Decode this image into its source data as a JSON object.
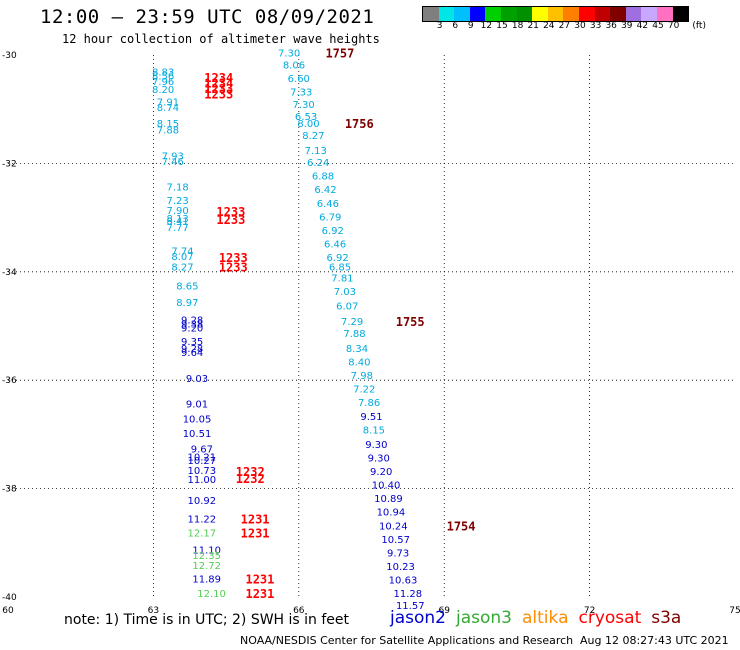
{
  "title": "12:00 – 23:59 UTC 08/09/2021",
  "subtitle": "12 hour collection of altimeter wave heights",
  "colorbar": {
    "colors": [
      "#7f7f7f",
      "#00e5e5",
      "#00bfff",
      "#0000ff",
      "#00d000",
      "#00a000",
      "#009000",
      "#ffff00",
      "#ffc000",
      "#ff8000",
      "#ff0000",
      "#c00000",
      "#800000",
      "#9f6fdf",
      "#c8a8ff",
      "#ff70c0",
      "#000000"
    ],
    "labels": [
      "3",
      "6",
      "9",
      "12",
      "15",
      "18",
      "21",
      "24",
      "27",
      "30",
      "33",
      "36",
      "39",
      "42",
      "45",
      "70"
    ],
    "unit": "(ft)"
  },
  "map": {
    "lon_range": [
      60,
      75
    ],
    "lat_range": [
      -30,
      -40
    ],
    "lon_ticks": [
      "60",
      "63",
      "66",
      "69",
      "72",
      "75"
    ],
    "lat_ticks": [
      "-30",
      "-32",
      "-34",
      "-36",
      "-38",
      "-40"
    ]
  },
  "missions": [
    {
      "name": "jason2",
      "color": "#0000cc"
    },
    {
      "name": "jason3",
      "color": "#33aa33"
    },
    {
      "name": "altika",
      "color": "#ff8c00"
    },
    {
      "name": "cryosat",
      "color": "#ff0000"
    },
    {
      "name": "s3a",
      "color": "#800000"
    }
  ],
  "note": "note: 1) Time is in UTC; 2) SWH is in feet",
  "credit": "NOAA/NESDIS Center for Satellite Applications and Research",
  "timestamp": "Aug 12 08:27:43 UTC 2021",
  "chart_data": {
    "type": "scatter",
    "title": "12:00 – 23:59 UTC 08/09/2021",
    "subtitle": "12 hour collection of altimeter wave heights",
    "xlabel": "",
    "ylabel": "",
    "xlim": [
      60,
      75
    ],
    "ylim": [
      -40,
      -30
    ],
    "track_a": [
      {
        "lon": 63.2,
        "lat": -30.38,
        "v": "8.83",
        "c": "#00aadd"
      },
      {
        "lon": 63.2,
        "lat": -30.45,
        "v": "8.56",
        "c": "#00aadd"
      },
      {
        "lon": 63.2,
        "lat": -30.55,
        "v": "7.96",
        "c": "#00aadd"
      },
      {
        "lon": 63.2,
        "lat": -30.7,
        "v": "8.20",
        "c": "#00aadd"
      },
      {
        "lon": 63.3,
        "lat": -30.93,
        "v": "7.91",
        "c": "#00aadd"
      },
      {
        "lon": 63.3,
        "lat": -31.03,
        "v": "8.74",
        "c": "#00aadd"
      },
      {
        "lon": 63.3,
        "lat": -31.33,
        "v": "8.15",
        "c": "#00aadd"
      },
      {
        "lon": 63.3,
        "lat": -31.45,
        "v": "7.88",
        "c": "#00aadd"
      },
      {
        "lon": 63.4,
        "lat": -31.93,
        "v": "7.93",
        "c": "#00aadd"
      },
      {
        "lon": 63.4,
        "lat": -32.03,
        "v": "7.46",
        "c": "#00aadd"
      },
      {
        "lon": 63.5,
        "lat": -32.5,
        "v": "7.18",
        "c": "#00aadd"
      },
      {
        "lon": 63.5,
        "lat": -32.75,
        "v": "7.23",
        "c": "#00aadd"
      },
      {
        "lon": 63.5,
        "lat": -32.93,
        "v": "7.90",
        "c": "#00aadd"
      },
      {
        "lon": 63.5,
        "lat": -33.08,
        "v": "8.13",
        "c": "#00aadd"
      },
      {
        "lon": 63.5,
        "lat": -33.13,
        "v": "8.41",
        "c": "#00aadd"
      },
      {
        "lon": 63.5,
        "lat": -33.25,
        "v": "7.77",
        "c": "#00aadd"
      },
      {
        "lon": 63.6,
        "lat": -33.68,
        "v": "7.74",
        "c": "#00aadd"
      },
      {
        "lon": 63.6,
        "lat": -33.78,
        "v": "8.07",
        "c": "#00aadd"
      },
      {
        "lon": 63.6,
        "lat": -33.98,
        "v": "8.27",
        "c": "#00aadd"
      },
      {
        "lon": 63.7,
        "lat": -34.33,
        "v": "8.65",
        "c": "#00aadd"
      },
      {
        "lon": 63.7,
        "lat": -34.63,
        "v": "8.97",
        "c": "#00aadd"
      },
      {
        "lon": 63.8,
        "lat": -34.95,
        "v": "9.28",
        "c": "#0000cc"
      },
      {
        "lon": 63.8,
        "lat": -35.03,
        "v": "9.38",
        "c": "#0000cc"
      },
      {
        "lon": 63.8,
        "lat": -35.1,
        "v": "9.20",
        "c": "#0000cc"
      },
      {
        "lon": 63.8,
        "lat": -35.35,
        "v": "9.35",
        "c": "#0000cc"
      },
      {
        "lon": 63.8,
        "lat": -35.48,
        "v": "9.28",
        "c": "#0000cc"
      },
      {
        "lon": 63.8,
        "lat": -35.55,
        "v": "9.64",
        "c": "#0000cc"
      },
      {
        "lon": 63.9,
        "lat": -36.03,
        "v": "9.03",
        "c": "#0000cc"
      },
      {
        "lon": 63.9,
        "lat": -36.5,
        "v": "9.01",
        "c": "#0000cc"
      },
      {
        "lon": 63.9,
        "lat": -36.78,
        "v": "10.05",
        "c": "#0000cc"
      },
      {
        "lon": 63.9,
        "lat": -37.05,
        "v": "10.51",
        "c": "#0000cc"
      },
      {
        "lon": 64.0,
        "lat": -37.33,
        "v": "9.67",
        "c": "#0000cc"
      },
      {
        "lon": 64.0,
        "lat": -37.48,
        "v": "10.21",
        "c": "#0000cc"
      },
      {
        "lon": 64.0,
        "lat": -37.55,
        "v": "10.27",
        "c": "#0000cc"
      },
      {
        "lon": 64.0,
        "lat": -37.73,
        "v": "10.73",
        "c": "#0000cc"
      },
      {
        "lon": 64.0,
        "lat": -37.9,
        "v": "11.00",
        "c": "#0000cc"
      },
      {
        "lon": 64.0,
        "lat": -38.28,
        "v": "10.92",
        "c": "#0000cc"
      },
      {
        "lon": 64.0,
        "lat": -38.63,
        "v": "11.22",
        "c": "#0000cc"
      },
      {
        "lon": 64.0,
        "lat": -38.88,
        "v": "12.17",
        "c": "#55cc55"
      },
      {
        "lon": 64.1,
        "lat": -39.2,
        "v": "11.10",
        "c": "#0000cc"
      },
      {
        "lon": 64.1,
        "lat": -39.3,
        "v": "12.35",
        "c": "#55cc55"
      },
      {
        "lon": 64.1,
        "lat": -39.48,
        "v": "12.72",
        "c": "#55cc55"
      },
      {
        "lon": 64.1,
        "lat": -39.73,
        "v": "11.89",
        "c": "#0000cc"
      },
      {
        "lon": 64.2,
        "lat": -40.0,
        "v": "12.10",
        "c": "#55cc55"
      }
    ],
    "track_a_times": [
      {
        "lon": 64.05,
        "lat": -30.48,
        "t": "1234"
      },
      {
        "lon": 64.05,
        "lat": -30.58,
        "t": "1234"
      },
      {
        "lon": 64.05,
        "lat": -30.68,
        "t": "1233"
      },
      {
        "lon": 64.05,
        "lat": -30.78,
        "t": "1233"
      },
      {
        "lon": 64.3,
        "lat": -32.95,
        "t": "1233"
      },
      {
        "lon": 64.3,
        "lat": -33.1,
        "t": "1233"
      },
      {
        "lon": 64.35,
        "lat": -33.8,
        "t": "1233"
      },
      {
        "lon": 64.35,
        "lat": -33.98,
        "t": "1233"
      },
      {
        "lon": 64.7,
        "lat": -37.75,
        "t": "1232"
      },
      {
        "lon": 64.7,
        "lat": -37.88,
        "t": "1232"
      },
      {
        "lon": 64.8,
        "lat": -38.63,
        "t": "1231"
      },
      {
        "lon": 64.8,
        "lat": -38.88,
        "t": "1231"
      },
      {
        "lon": 64.9,
        "lat": -39.73,
        "t": "1231"
      },
      {
        "lon": 64.9,
        "lat": -40.0,
        "t": "1231"
      }
    ],
    "track_b": [
      {
        "lon": 65.8,
        "lat": -30.03,
        "v": "7.30",
        "c": "#00aadd"
      },
      {
        "lon": 65.9,
        "lat": -30.25,
        "v": "8.06",
        "c": "#00aadd"
      },
      {
        "lon": 66.0,
        "lat": -30.5,
        "v": "6.60",
        "c": "#00aadd"
      },
      {
        "lon": 66.05,
        "lat": -30.75,
        "v": "7.33",
        "c": "#00aadd"
      },
      {
        "lon": 66.1,
        "lat": -30.98,
        "v": "7.30",
        "c": "#00aadd"
      },
      {
        "lon": 66.15,
        "lat": -31.2,
        "v": "6.53",
        "c": "#00aadd"
      },
      {
        "lon": 66.2,
        "lat": -31.33,
        "v": "8.00",
        "c": "#00aadd"
      },
      {
        "lon": 66.3,
        "lat": -31.55,
        "v": "8.27",
        "c": "#00aadd"
      },
      {
        "lon": 66.35,
        "lat": -31.83,
        "v": "7.13",
        "c": "#00aadd"
      },
      {
        "lon": 66.4,
        "lat": -32.05,
        "v": "6.24",
        "c": "#00aadd"
      },
      {
        "lon": 66.5,
        "lat": -32.3,
        "v": "6.88",
        "c": "#00aadd"
      },
      {
        "lon": 66.55,
        "lat": -32.55,
        "v": "6.42",
        "c": "#00aadd"
      },
      {
        "lon": 66.6,
        "lat": -32.8,
        "v": "6.46",
        "c": "#00aadd"
      },
      {
        "lon": 66.65,
        "lat": -33.05,
        "v": "6.79",
        "c": "#00aadd"
      },
      {
        "lon": 66.7,
        "lat": -33.3,
        "v": "6.92",
        "c": "#00aadd"
      },
      {
        "lon": 66.75,
        "lat": -33.55,
        "v": "6.46",
        "c": "#00aadd"
      },
      {
        "lon": 66.8,
        "lat": -33.8,
        "v": "6.92",
        "c": "#00aadd"
      },
      {
        "lon": 66.85,
        "lat": -33.98,
        "v": "6.85",
        "c": "#00aadd"
      },
      {
        "lon": 66.9,
        "lat": -34.18,
        "v": "7.81",
        "c": "#00aadd"
      },
      {
        "lon": 66.95,
        "lat": -34.43,
        "v": "7.03",
        "c": "#00aadd"
      },
      {
        "lon": 67.0,
        "lat": -34.7,
        "v": "6.07",
        "c": "#00aadd"
      },
      {
        "lon": 67.1,
        "lat": -34.98,
        "v": "7.29",
        "c": "#00aadd"
      },
      {
        "lon": 67.15,
        "lat": -35.2,
        "v": "7.88",
        "c": "#00aadd"
      },
      {
        "lon": 67.2,
        "lat": -35.48,
        "v": "8.34",
        "c": "#00aadd"
      },
      {
        "lon": 67.25,
        "lat": -35.73,
        "v": "8.40",
        "c": "#00aadd"
      },
      {
        "lon": 67.3,
        "lat": -35.98,
        "v": "7.98",
        "c": "#00aadd"
      },
      {
        "lon": 67.35,
        "lat": -36.23,
        "v": "7.22",
        "c": "#00aadd"
      },
      {
        "lon": 67.45,
        "lat": -36.48,
        "v": "7.86",
        "c": "#00aadd"
      },
      {
        "lon": 67.5,
        "lat": -36.73,
        "v": "9.51",
        "c": "#0000cc"
      },
      {
        "lon": 67.55,
        "lat": -36.98,
        "v": "8.15",
        "c": "#00aadd"
      },
      {
        "lon": 67.6,
        "lat": -37.25,
        "v": "9.30",
        "c": "#0000cc"
      },
      {
        "lon": 67.65,
        "lat": -37.5,
        "v": "9.30",
        "c": "#0000cc"
      },
      {
        "lon": 67.7,
        "lat": -37.75,
        "v": "9.20",
        "c": "#0000cc"
      },
      {
        "lon": 67.8,
        "lat": -38.0,
        "v": "10.40",
        "c": "#0000cc"
      },
      {
        "lon": 67.85,
        "lat": -38.25,
        "v": "10.89",
        "c": "#0000cc"
      },
      {
        "lon": 67.9,
        "lat": -38.5,
        "v": "10.94",
        "c": "#0000cc"
      },
      {
        "lon": 67.95,
        "lat": -38.75,
        "v": "10.24",
        "c": "#0000cc"
      },
      {
        "lon": 68.0,
        "lat": -39.0,
        "v": "10.57",
        "c": "#0000cc"
      },
      {
        "lon": 68.05,
        "lat": -39.25,
        "v": "9.73",
        "c": "#0000cc"
      },
      {
        "lon": 68.1,
        "lat": -39.5,
        "v": "10.23",
        "c": "#0000cc"
      },
      {
        "lon": 68.15,
        "lat": -39.75,
        "v": "10.63",
        "c": "#0000cc"
      },
      {
        "lon": 68.25,
        "lat": -40.0,
        "v": "11.28",
        "c": "#0000cc"
      },
      {
        "lon": 68.3,
        "lat": -40.22,
        "v": "11.57",
        "c": "#0000cc"
      }
    ],
    "track_b_times": [
      {
        "lon": 66.55,
        "lat": -30.03,
        "t": "1757"
      },
      {
        "lon": 66.95,
        "lat": -31.33,
        "t": "1756"
      },
      {
        "lon": 68.0,
        "lat": -34.98,
        "t": "1755"
      },
      {
        "lon": 69.05,
        "lat": -38.75,
        "t": "1754"
      }
    ]
  }
}
